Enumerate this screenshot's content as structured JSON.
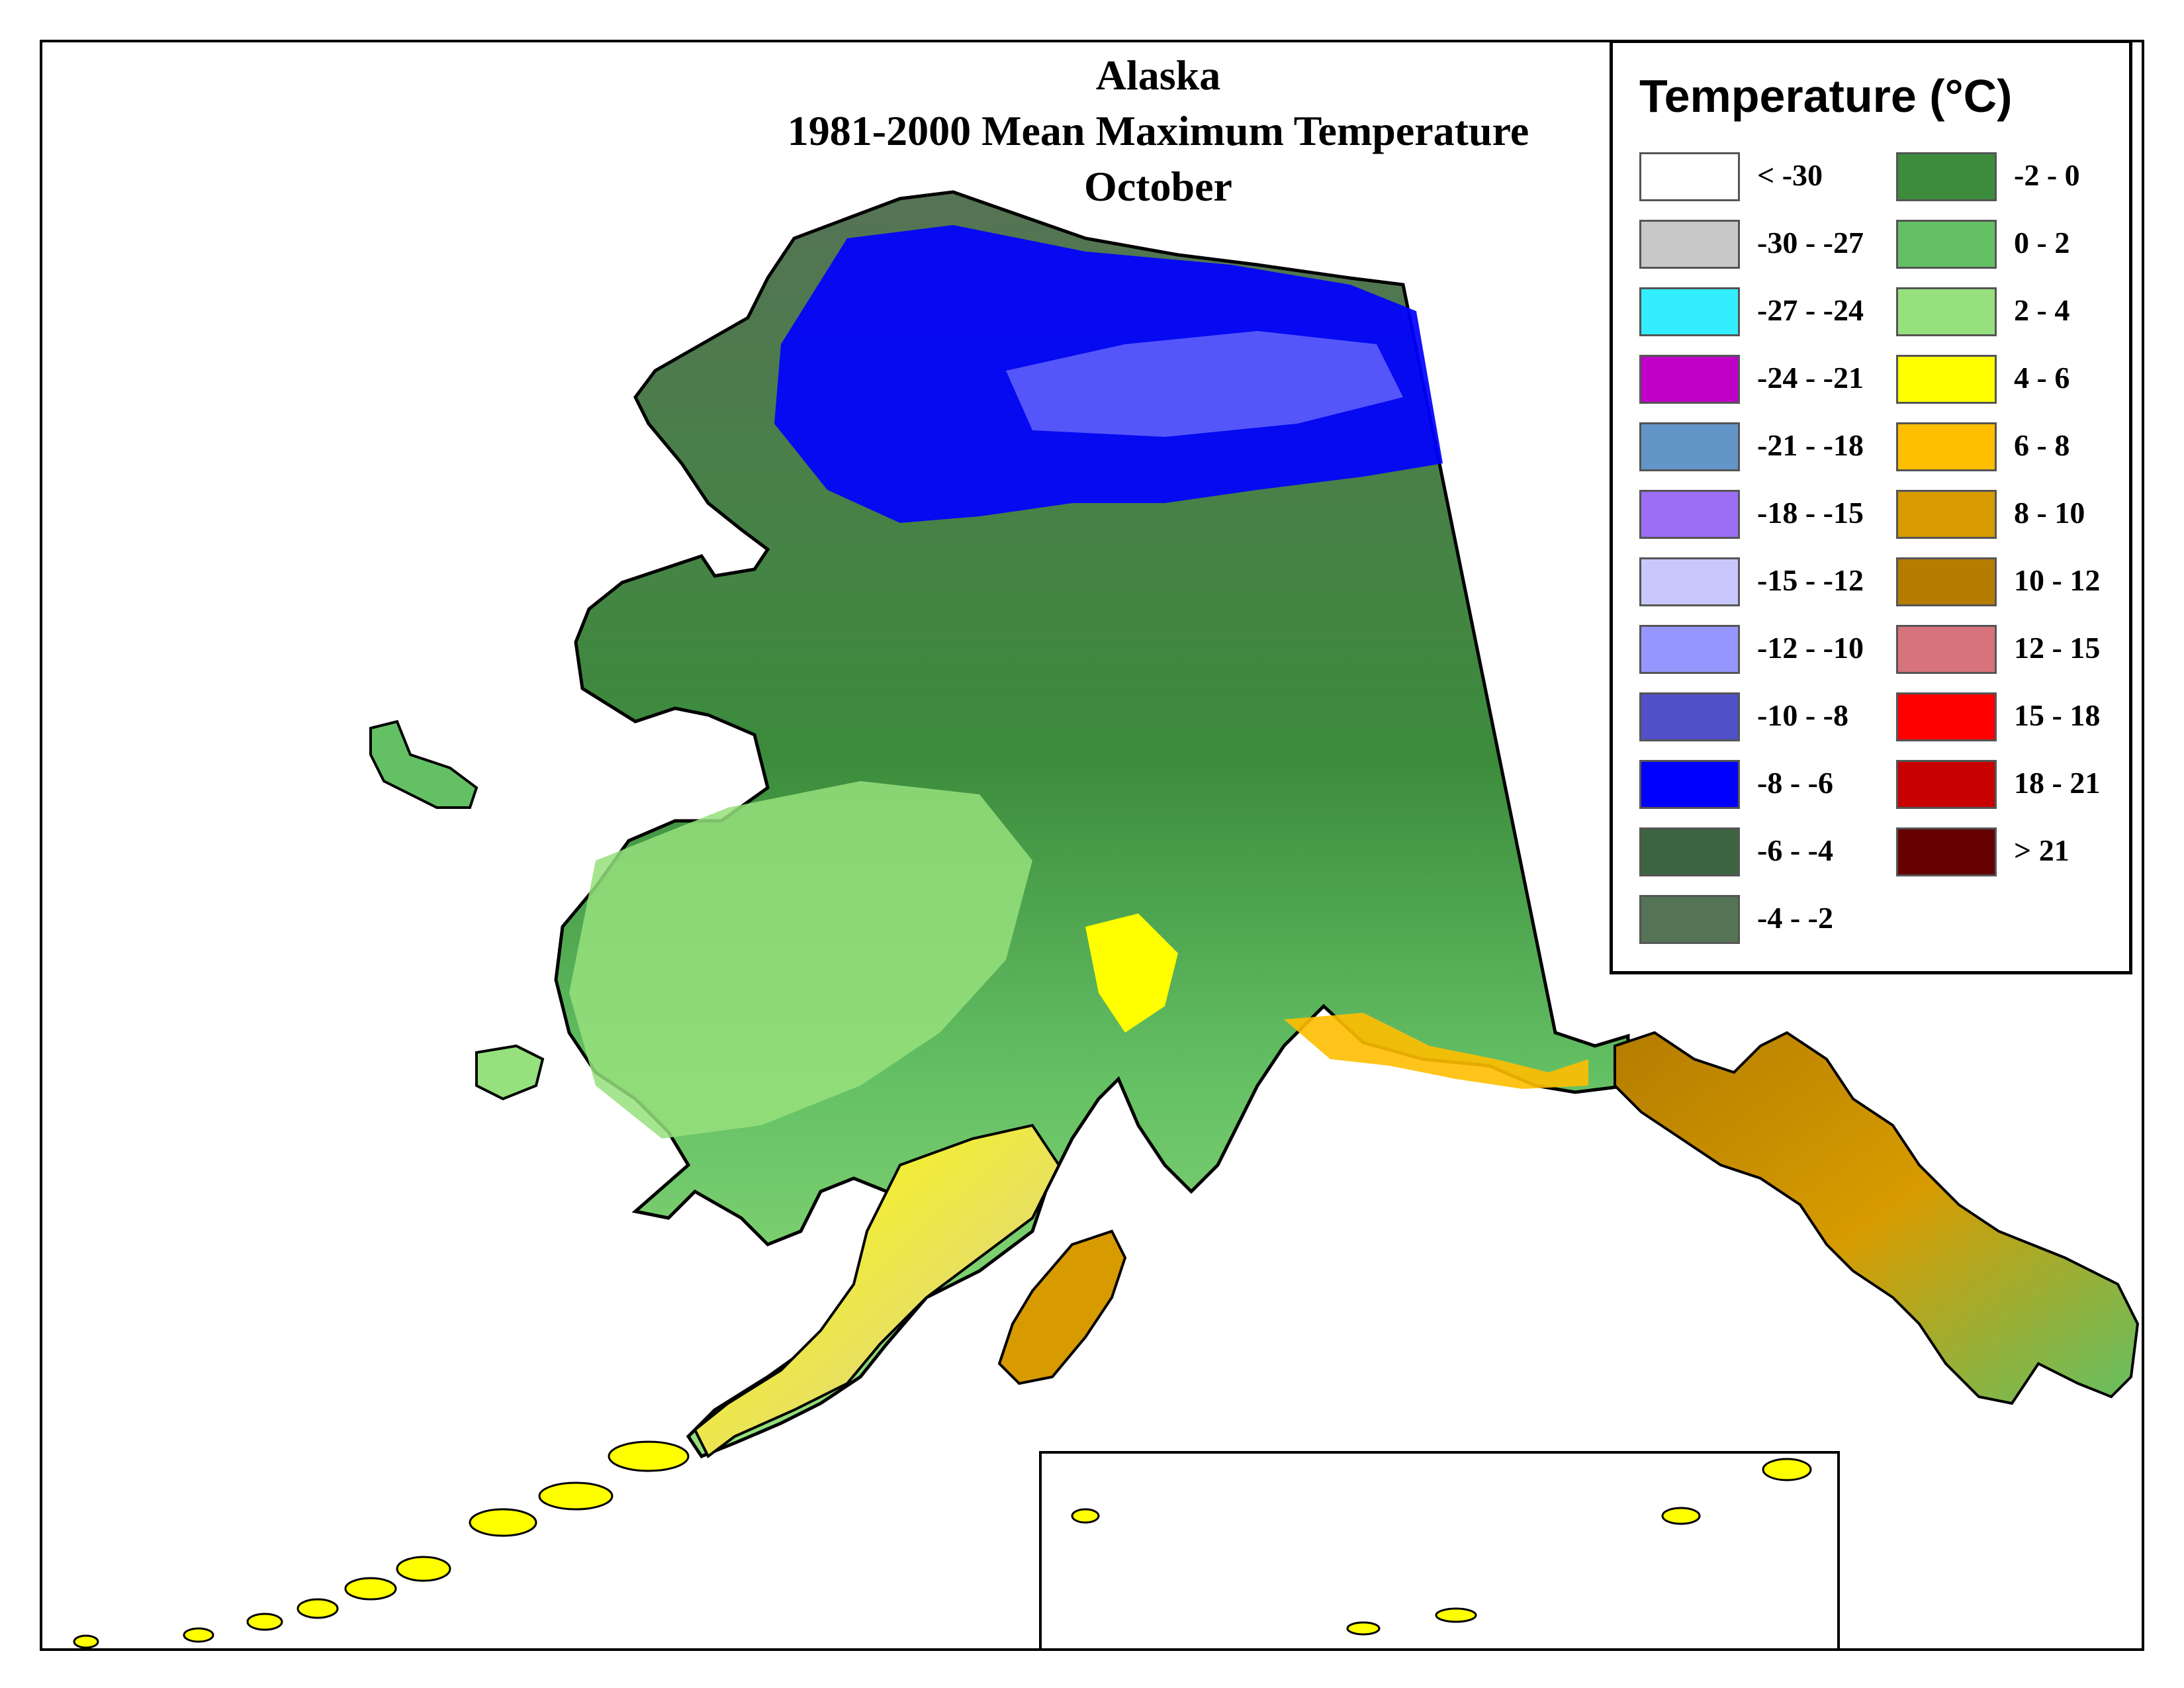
{
  "title": {
    "line1": "Alaska",
    "line2": "1981-2000 Mean Maximum Temperature",
    "line3": "October"
  },
  "legend": {
    "title": "Temperature (°C)",
    "items": [
      {
        "label": "< -30",
        "color": "#ffffff"
      },
      {
        "label": "-30 - -27",
        "color": "#c8c8c8"
      },
      {
        "label": "-27 - -24",
        "color": "#33eeff"
      },
      {
        "label": "-24 - -21",
        "color": "#c000c8"
      },
      {
        "label": "-21 - -18",
        "color": "#6495c8"
      },
      {
        "label": "-18 - -15",
        "color": "#9b6ef5"
      },
      {
        "label": "-15 - -12",
        "color": "#c8c8ff"
      },
      {
        "label": "-12 - -10",
        "color": "#9696ff"
      },
      {
        "label": "-10 - -8",
        "color": "#5050c8"
      },
      {
        "label": "-8 - -6",
        "color": "#0000ff"
      },
      {
        "label": "-6 - -4",
        "color": "#3c6440"
      },
      {
        "label": "-4 - -2",
        "color": "#557355"
      },
      {
        "label": "-2 - 0",
        "color": "#3c8c3c"
      },
      {
        "label": "0 - 2",
        "color": "#64c064"
      },
      {
        "label": "2 - 4",
        "color": "#96e17d"
      },
      {
        "label": "4 - 6",
        "color": "#ffff00"
      },
      {
        "label": "6 - 8",
        "color": "#ffbe00"
      },
      {
        "label": "8 - 10",
        "color": "#d79b00"
      },
      {
        "label": "10 - 12",
        "color": "#b47d00"
      },
      {
        "label": "12 - 15",
        "color": "#d7737d"
      },
      {
        "label": "15 - 18",
        "color": "#ff0000"
      },
      {
        "label": "18 - 21",
        "color": "#c80000"
      },
      {
        "label": "> 21",
        "color": "#640000"
      }
    ]
  },
  "map_colors": {
    "water": "#ffffff",
    "outline": "#000000"
  }
}
